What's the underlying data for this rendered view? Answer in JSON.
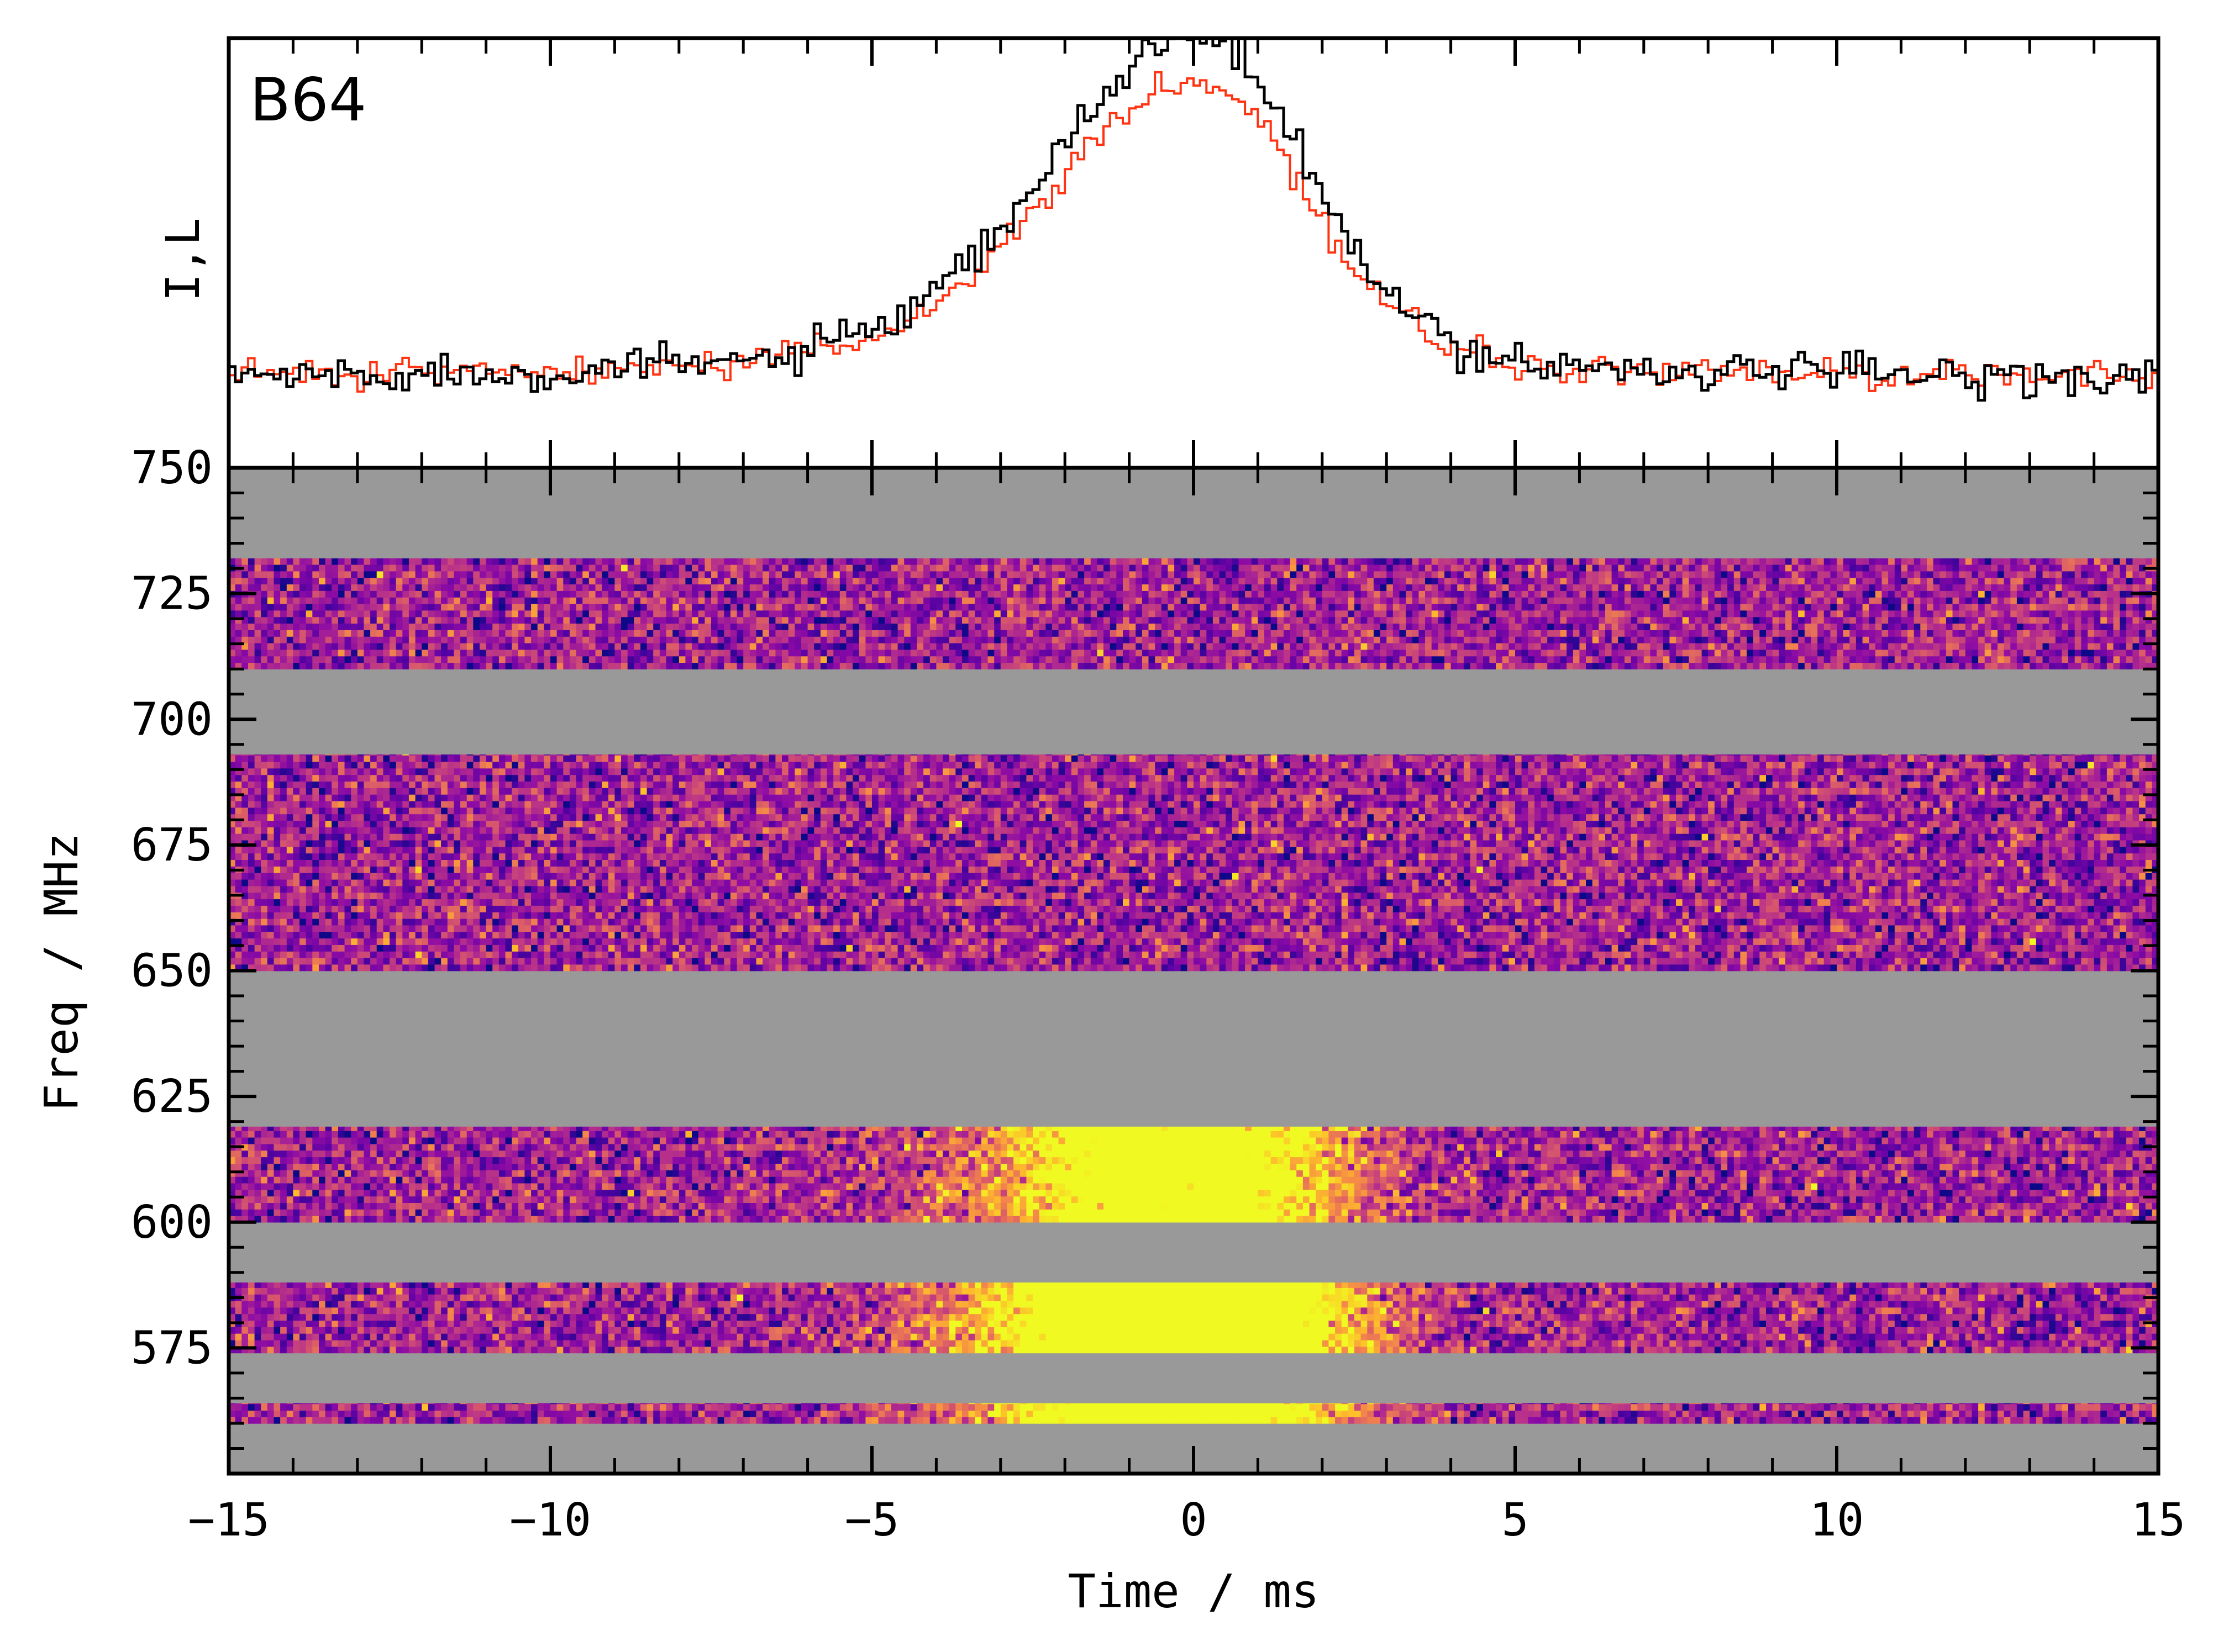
{
  "chart_data": [
    {
      "type": "line",
      "panel": "profile",
      "title": "B64",
      "ylabel": "I,L",
      "xlim": [
        -15,
        15
      ],
      "grid": false,
      "series": [
        {
          "name": "I",
          "color": "#000000",
          "style": "step"
        },
        {
          "name": "L",
          "color": "#ff3311",
          "style": "step"
        }
      ],
      "pulse": {
        "peak_time_ms": 0.1,
        "rise_width_ms": 2.2,
        "decay_width_ms": 1.6,
        "baseline_I": 0.0,
        "peak_I": 1.0,
        "peak_L": 0.87
      }
    },
    {
      "type": "heatmap",
      "panel": "dynamic-spectrum",
      "xlabel": "Time / ms",
      "ylabel": "Freq / MHz",
      "xlim": [
        -15,
        15
      ],
      "ylim": [
        550,
        750
      ],
      "xticks": [
        "−15",
        "−10",
        "−5",
        "0",
        "5",
        "10",
        "15"
      ],
      "xtick_values": [
        -15,
        -10,
        -5,
        0,
        5,
        10,
        15
      ],
      "yticks": [
        "750",
        "725",
        "700",
        "675",
        "650",
        "625",
        "600",
        "575"
      ],
      "ytick_values": [
        750,
        725,
        700,
        675,
        650,
        625,
        600,
        575
      ],
      "colormap": "plasma",
      "masked_color": "#999999",
      "masked_bands_mhz": [
        [
          732,
          750
        ],
        [
          693,
          710
        ],
        [
          619,
          650
        ],
        [
          588,
          600
        ],
        [
          564,
          574
        ],
        [
          550,
          560
        ]
      ],
      "data_bands_mhz": [
        [
          710,
          732
        ],
        [
          650,
          693
        ],
        [
          600,
          619
        ],
        [
          574,
          588
        ],
        [
          560,
          564
        ]
      ],
      "signal": {
        "center_time_ms": 0.0,
        "freq_range_mhz": [
          560,
          619
        ],
        "brightest_mhz": [
          574,
          588
        ]
      }
    }
  ]
}
